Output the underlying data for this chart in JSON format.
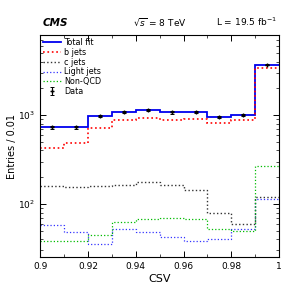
{
  "xlabel": "CSV",
  "ylabel": "Entries / 0.01",
  "xlim": [
    0.9,
    1.0
  ],
  "ylim_log": [
    25,
    8000
  ],
  "bin_edges": [
    0.9,
    0.91,
    0.92,
    0.93,
    0.94,
    0.95,
    0.96,
    0.97,
    0.98,
    0.99,
    1.0
  ],
  "data_values": [
    730,
    730,
    980,
    1080,
    1150,
    1070,
    1080,
    950,
    1000,
    3700
  ],
  "total_fit": [
    730,
    730,
    980,
    1080,
    1150,
    1070,
    1080,
    950,
    1000,
    3700
  ],
  "b_jets": [
    430,
    490,
    720,
    870,
    930,
    890,
    900,
    820,
    870,
    3400
  ],
  "c_jets": [
    160,
    155,
    160,
    165,
    175,
    165,
    145,
    80,
    60,
    120
  ],
  "light_jets": [
    58,
    48,
    35,
    52,
    48,
    42,
    38,
    40,
    52,
    115
  ],
  "non_qcd": [
    38,
    38,
    45,
    62,
    68,
    70,
    68,
    52,
    50,
    270
  ],
  "color_data": "#000000",
  "color_total": "#0000ee",
  "color_b": "#ff0000",
  "color_c": "#333333",
  "color_light": "#3333ff",
  "color_nonqcd": "#00bb00",
  "bg_color": "#ffffff",
  "legend_items": [
    "Data",
    "Total fit",
    "b jets",
    "c jets",
    "Light jets",
    "Non-QCD"
  ]
}
